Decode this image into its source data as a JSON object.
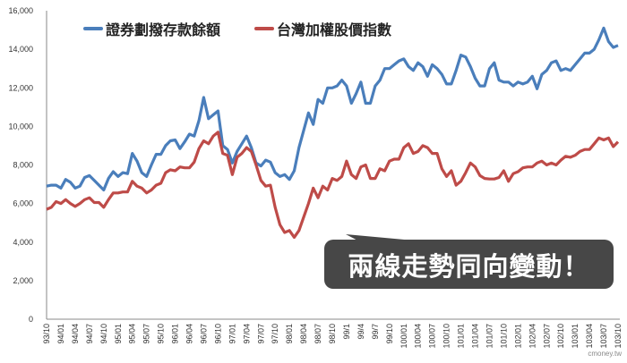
{
  "chart_data": {
    "type": "line",
    "title": "",
    "xlabel": "",
    "ylabel": "",
    "ylim": [
      0,
      16000
    ],
    "yticks": [
      0,
      2000,
      4000,
      6000,
      8000,
      10000,
      12000,
      14000,
      16000
    ],
    "ytick_labels": [
      "0",
      "2,000",
      "4,000",
      "6,000",
      "8,000",
      "10,000",
      "12,000",
      "14,000",
      "16,000"
    ],
    "x_tick_labels": [
      "93/10",
      "94/01",
      "94/04",
      "94/07",
      "94/10",
      "95/01",
      "95/04",
      "95/07",
      "95/10",
      "96/01",
      "96/04",
      "96/07",
      "96/10",
      "97/01",
      "97/04",
      "97/07",
      "97/10",
      "98/01",
      "98/04",
      "98/07",
      "98/10",
      "99/1",
      "99/4",
      "99/7",
      "99/10",
      "100/01",
      "100/04",
      "100/07",
      "100/10",
      "101/01",
      "101/04",
      "101/07",
      "101/10",
      "102/01",
      "102/04",
      "102/07",
      "102/10",
      "103/01",
      "103/04",
      "103/07",
      "103/10"
    ],
    "grid": false,
    "legend_position": "top",
    "series": [
      {
        "name": "證券劃撥存款餘額",
        "color": "#4a7ebb",
        "values": [
          6900,
          6950,
          6950,
          6800,
          7250,
          7100,
          6800,
          6900,
          7350,
          7450,
          7200,
          6950,
          6700,
          7300,
          7650,
          7400,
          7600,
          7550,
          8600,
          8200,
          7600,
          7400,
          8000,
          8550,
          8550,
          9000,
          9250,
          9300,
          8850,
          9200,
          9600,
          9500,
          10300,
          11500,
          10400,
          10600,
          10800,
          9000,
          8800,
          8100,
          8700,
          9100,
          9500,
          8900,
          8100,
          7950,
          8250,
          8150,
          7600,
          7400,
          7500,
          7250,
          7700,
          8900,
          9800,
          10700,
          10100,
          11400,
          11200,
          12000,
          12000,
          12100,
          12400,
          12100,
          11200,
          11700,
          12300,
          11200,
          11200,
          12100,
          12400,
          13000,
          13000,
          13200,
          13400,
          13500,
          13100,
          12900,
          13300,
          13100,
          12600,
          13200,
          13000,
          12700,
          12200,
          12200,
          12900,
          13700,
          13600,
          13100,
          12500,
          12100,
          12100,
          13000,
          13300,
          12400,
          12300,
          12300,
          12100,
          12300,
          12200,
          12300,
          12600,
          11950,
          12700,
          12900,
          13300,
          13400,
          12900,
          13000,
          12900,
          13200,
          13500,
          13800,
          13800,
          14000,
          14500,
          15100,
          14400,
          14100,
          14200
        ]
      },
      {
        "name": "台灣加權股價指數",
        "color": "#be4b48",
        "values": [
          5700,
          5800,
          6100,
          6000,
          6200,
          6000,
          5850,
          6000,
          6200,
          6300,
          6050,
          6050,
          5800,
          6200,
          6550,
          6550,
          6600,
          6600,
          7150,
          6900,
          6800,
          6550,
          6700,
          6950,
          7050,
          7600,
          7750,
          7700,
          7900,
          7850,
          7850,
          8150,
          8850,
          9250,
          9100,
          9500,
          9700,
          8600,
          8500,
          7500,
          8400,
          8600,
          8900,
          8700,
          8000,
          7200,
          6900,
          6950,
          5800,
          4900,
          4500,
          4600,
          4250,
          4600,
          5300,
          6000,
          6800,
          6300,
          6900,
          6700,
          7300,
          7200,
          7400,
          8200,
          7500,
          7300,
          7900,
          8000,
          7300,
          7300,
          7800,
          7700,
          8200,
          8300,
          8300,
          8900,
          9100,
          8600,
          8700,
          9000,
          8900,
          8600,
          8600,
          7800,
          7400,
          7700,
          6950,
          7150,
          7600,
          8100,
          7900,
          7450,
          7300,
          7270,
          7270,
          7350,
          7700,
          7150,
          7550,
          7650,
          7850,
          7900,
          7900,
          8100,
          8200,
          8000,
          8100,
          8000,
          8250,
          8450,
          8400,
          8500,
          8700,
          8800,
          8800,
          9100,
          9400,
          9300,
          9400,
          8950,
          9200
        ]
      }
    ]
  },
  "legend": {
    "series_1": "證券劃撥存款餘額",
    "series_2": "台灣加權股價指數"
  },
  "callout": {
    "text": "兩線走勢同向變動！",
    "background": "#474747"
  },
  "watermark": "cmoney.tw"
}
